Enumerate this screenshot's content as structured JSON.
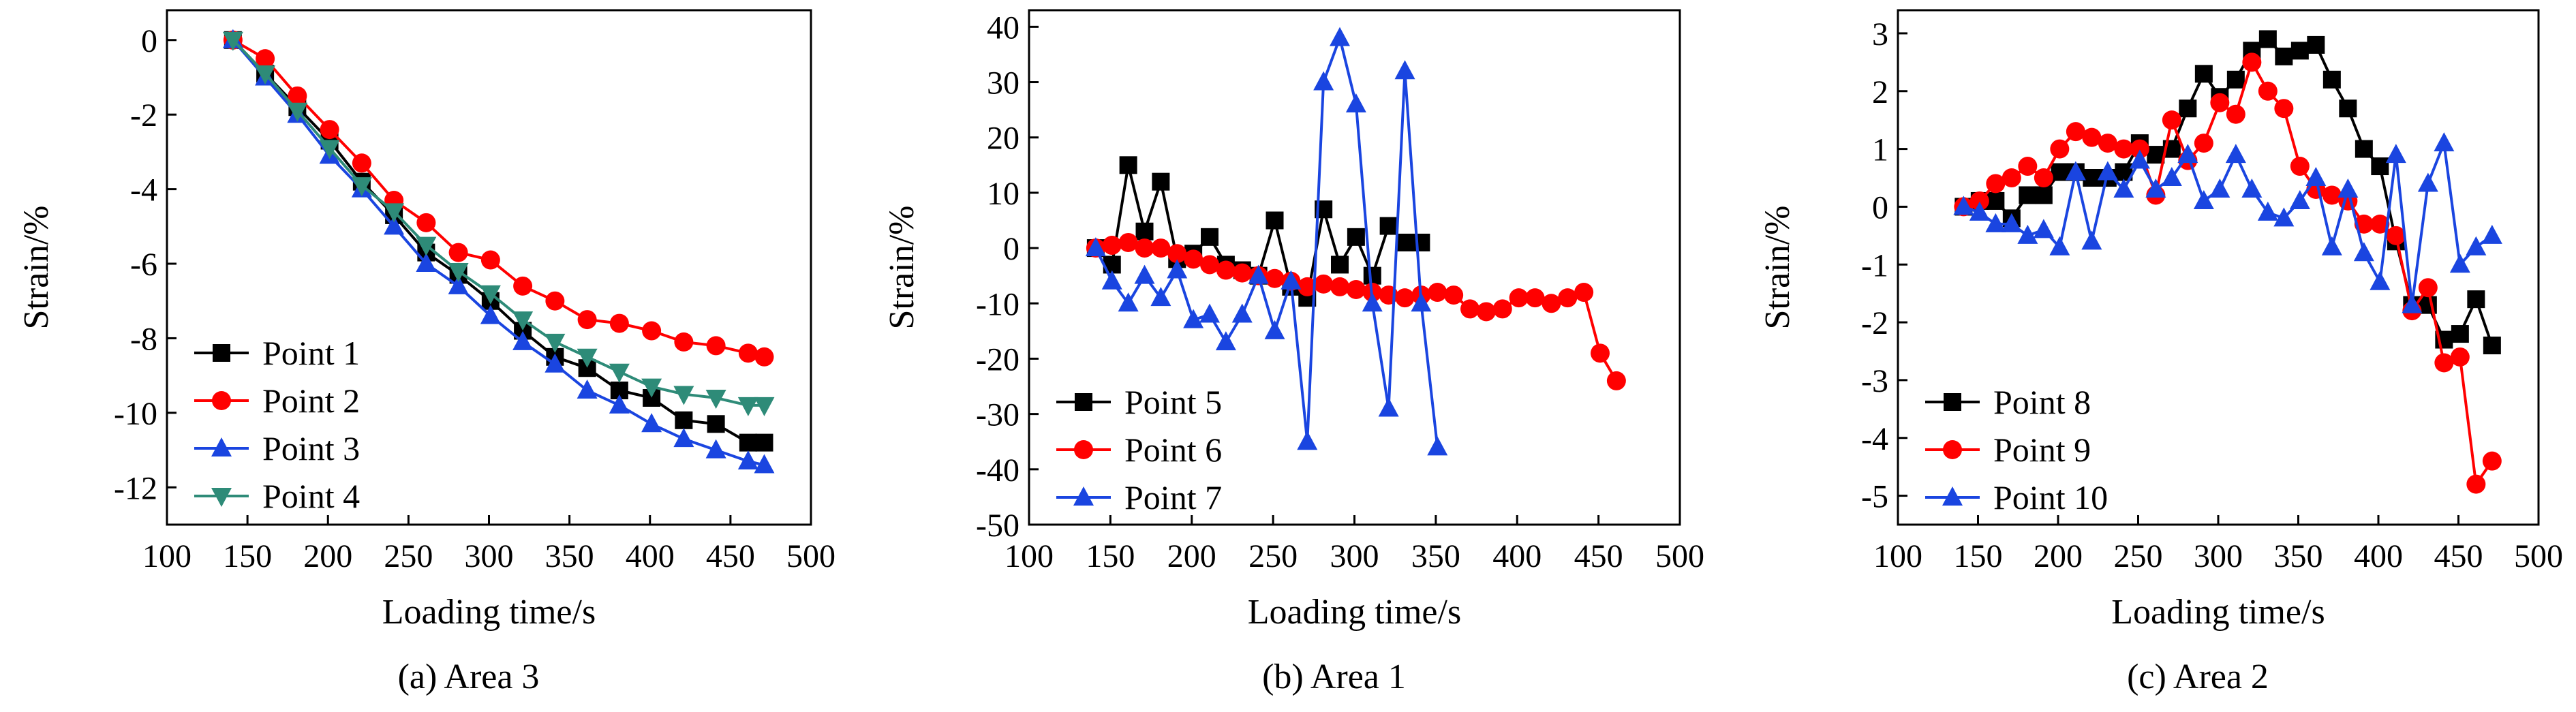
{
  "chart_data": [
    {
      "type": "line",
      "caption": "(a) Area 3",
      "xlabel": "Loading time/s",
      "ylabel": "Strain/%",
      "xlim": [
        100,
        500
      ],
      "ylim": [
        -13,
        0.8
      ],
      "xticks": [
        "100",
        "150",
        "200",
        "250",
        "300",
        "350",
        "400",
        "450",
        "500"
      ],
      "yticks": [
        "0",
        "-2",
        "-4",
        "-6",
        "-8",
        "-10",
        "-12"
      ],
      "legend_position": "bottom-left",
      "series": [
        {
          "name": "Point 1",
          "color": "#000000",
          "marker": "square",
          "x": [
            141,
            161,
            181,
            201,
            221,
            241,
            261,
            281,
            301,
            321,
            341,
            361,
            381,
            401,
            421,
            441,
            461,
            471
          ],
          "y": [
            0,
            -0.9,
            -1.8,
            -2.7,
            -3.8,
            -4.7,
            -5.7,
            -6.3,
            -7.0,
            -7.8,
            -8.5,
            -8.8,
            -9.4,
            -9.6,
            -10.2,
            -10.3,
            -10.8,
            -10.8
          ]
        },
        {
          "name": "Point 2",
          "color": "#ff0000",
          "marker": "circle",
          "x": [
            141,
            161,
            181,
            201,
            221,
            241,
            261,
            281,
            301,
            321,
            341,
            361,
            381,
            401,
            421,
            441,
            461,
            471
          ],
          "y": [
            0,
            -0.5,
            -1.5,
            -2.4,
            -3.3,
            -4.3,
            -4.9,
            -5.7,
            -5.9,
            -6.6,
            -7.0,
            -7.5,
            -7.6,
            -7.8,
            -8.1,
            -8.2,
            -8.4,
            -8.5
          ]
        },
        {
          "name": "Point 3",
          "color": "#1a45e0",
          "marker": "triangle-up",
          "x": [
            141,
            161,
            181,
            201,
            221,
            241,
            261,
            281,
            301,
            321,
            341,
            361,
            381,
            401,
            421,
            441,
            461,
            471
          ],
          "y": [
            0,
            -1.0,
            -2.0,
            -3.1,
            -4.0,
            -5.0,
            -6.0,
            -6.6,
            -7.4,
            -8.1,
            -8.7,
            -9.4,
            -9.8,
            -10.3,
            -10.7,
            -11.0,
            -11.3,
            -11.4
          ]
        },
        {
          "name": "Point 4",
          "color": "#2e8b78",
          "marker": "triangle-down",
          "x": [
            141,
            161,
            181,
            201,
            221,
            241,
            261,
            281,
            301,
            321,
            341,
            361,
            381,
            401,
            421,
            441,
            461,
            471
          ],
          "y": [
            0,
            -0.9,
            -1.9,
            -2.9,
            -3.9,
            -4.6,
            -5.5,
            -6.2,
            -6.8,
            -7.5,
            -8.1,
            -8.5,
            -8.9,
            -9.3,
            -9.5,
            -9.6,
            -9.8,
            -9.8
          ]
        }
      ]
    },
    {
      "type": "line",
      "caption": "(b) Area 1",
      "xlabel": "Loading time/s",
      "ylabel": "Strain/%",
      "xlim": [
        100,
        500
      ],
      "ylim": [
        -50,
        43
      ],
      "xticks": [
        "100",
        "150",
        "200",
        "250",
        "300",
        "350",
        "400",
        "450",
        "500"
      ],
      "yticks": [
        "40",
        "30",
        "20",
        "10",
        "0",
        "-10",
        "-20",
        "-30",
        "-40",
        "-50"
      ],
      "legend_position": "bottom-left",
      "series": [
        {
          "name": "Point 5",
          "color": "#000000",
          "marker": "square",
          "x": [
            141,
            151,
            161,
            171,
            181,
            191,
            201,
            211,
            221,
            231,
            241,
            251,
            261,
            271,
            281,
            291,
            301,
            311,
            321,
            331,
            341
          ],
          "y": [
            0,
            -3,
            15,
            3,
            12,
            -2,
            -1,
            2,
            -3,
            -4,
            -5,
            5,
            -7,
            -9,
            7,
            -3,
            2,
            -5,
            4,
            1,
            1
          ]
        },
        {
          "name": "Point 6",
          "color": "#ff0000",
          "marker": "circle",
          "x": [
            141,
            151,
            161,
            171,
            181,
            191,
            201,
            211,
            221,
            231,
            241,
            251,
            261,
            271,
            281,
            291,
            301,
            311,
            321,
            331,
            341,
            351,
            361,
            371,
            381,
            391,
            401,
            411,
            421,
            431,
            441,
            451,
            461
          ],
          "y": [
            0,
            0.5,
            1,
            0,
            0,
            -1,
            -2,
            -3,
            -4,
            -4.5,
            -5,
            -5.5,
            -6,
            -7,
            -6.5,
            -7,
            -7.5,
            -8,
            -8.5,
            -9,
            -8.5,
            -8,
            -8.5,
            -11,
            -11.5,
            -11,
            -9,
            -9,
            -10,
            -9,
            -8,
            -19,
            -24
          ]
        },
        {
          "name": "Point 7",
          "color": "#1a45e0",
          "marker": "triangle-up",
          "x": [
            141,
            151,
            161,
            171,
            181,
            191,
            201,
            211,
            221,
            231,
            241,
            251,
            261,
            271,
            281,
            291,
            301,
            311,
            321,
            331,
            341,
            351
          ],
          "y": [
            0,
            -6,
            -10,
            -5,
            -9,
            -4,
            -13,
            -12,
            -17,
            -12,
            -5,
            -15,
            -6,
            -35,
            30,
            38,
            26,
            -10,
            -29,
            32,
            -10,
            -36
          ]
        }
      ]
    },
    {
      "type": "line",
      "caption": "(c) Area 2",
      "xlabel": "Loading time/s",
      "ylabel": "Strain/%",
      "xlim": [
        100,
        500
      ],
      "ylim": [
        -5.5,
        3.4
      ],
      "xticks": [
        "100",
        "150",
        "200",
        "250",
        "300",
        "350",
        "400",
        "450",
        "500"
      ],
      "yticks": [
        "3",
        "2",
        "1",
        "0",
        "-1",
        "-2",
        "-3",
        "-4",
        "-5"
      ],
      "legend_position": "bottom-left",
      "series": [
        {
          "name": "Point 8",
          "color": "#000000",
          "marker": "square",
          "x": [
            141,
            151,
            161,
            171,
            181,
            191,
            201,
            211,
            221,
            231,
            241,
            251,
            261,
            271,
            281,
            291,
            301,
            311,
            321,
            331,
            341,
            351,
            361,
            371,
            381,
            391,
            401,
            411,
            421,
            431,
            441,
            451,
            461,
            471
          ],
          "y": [
            0,
            0.1,
            0.1,
            -0.2,
            0.2,
            0.2,
            0.6,
            0.6,
            0.5,
            0.5,
            0.6,
            1.1,
            0.9,
            1.0,
            1.7,
            2.3,
            1.9,
            2.2,
            2.7,
            2.9,
            2.6,
            2.7,
            2.8,
            2.2,
            1.7,
            1.0,
            0.7,
            -0.6,
            -1.7,
            -1.7,
            -2.3,
            -2.2,
            -1.6,
            -2.4
          ]
        },
        {
          "name": "Point 9",
          "color": "#ff0000",
          "marker": "circle",
          "x": [
            141,
            151,
            161,
            171,
            181,
            191,
            201,
            211,
            221,
            231,
            241,
            251,
            261,
            271,
            281,
            291,
            301,
            311,
            321,
            331,
            341,
            351,
            361,
            371,
            381,
            391,
            401,
            411,
            421,
            431,
            441,
            451,
            461,
            471
          ],
          "y": [
            0,
            0.1,
            0.4,
            0.5,
            0.7,
            0.5,
            1.0,
            1.3,
            1.2,
            1.1,
            1.0,
            1.0,
            0.2,
            1.5,
            0.8,
            1.1,
            1.8,
            1.6,
            2.5,
            2.0,
            1.7,
            0.7,
            0.3,
            0.2,
            0.1,
            -0.3,
            -0.3,
            -0.5,
            -1.8,
            -1.4,
            -2.7,
            -2.6,
            -4.8,
            -4.4
          ]
        },
        {
          "name": "Point 10",
          "color": "#1a45e0",
          "marker": "triangle-up",
          "x": [
            141,
            151,
            161,
            171,
            181,
            191,
            201,
            211,
            221,
            231,
            241,
            251,
            261,
            271,
            281,
            291,
            301,
            311,
            321,
            331,
            341,
            351,
            361,
            371,
            381,
            391,
            401,
            411,
            421,
            431,
            441,
            451,
            461,
            471
          ],
          "y": [
            0,
            -0.1,
            -0.3,
            -0.3,
            -0.5,
            -0.4,
            -0.7,
            0.6,
            -0.6,
            0.6,
            0.3,
            0.8,
            0.3,
            0.5,
            0.9,
            0.1,
            0.3,
            0.9,
            0.3,
            -0.1,
            -0.2,
            0.1,
            0.5,
            -0.7,
            0.3,
            -0.8,
            -1.3,
            0.9,
            -1.7,
            0.4,
            1.1,
            -1.0,
            -0.7,
            -0.5
          ]
        }
      ]
    }
  ]
}
